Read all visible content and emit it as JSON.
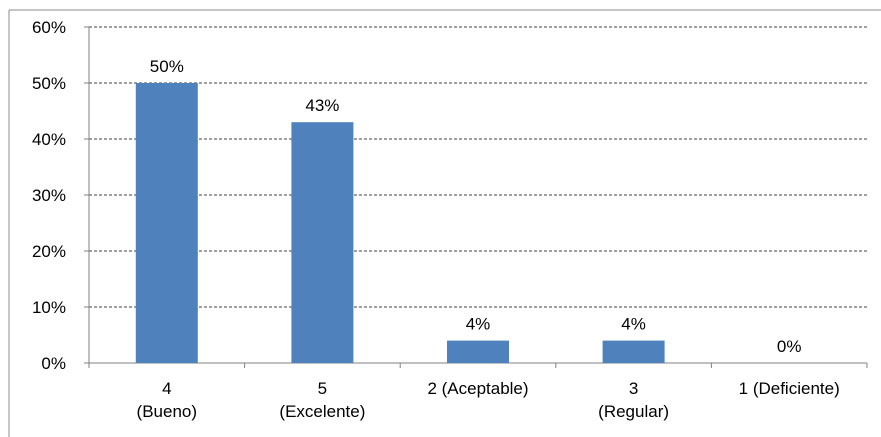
{
  "chart_data": {
    "type": "bar",
    "categories": [
      [
        "4",
        "(Bueno)"
      ],
      [
        "5",
        "(Excelente)"
      ],
      [
        "2 (Aceptable)"
      ],
      [
        "3",
        "(Regular)"
      ],
      [
        "1 (Deficiente)"
      ]
    ],
    "values": [
      50,
      43,
      4,
      4,
      0
    ],
    "data_labels": [
      "50%",
      "43%",
      "4%",
      "4%",
      "0%"
    ],
    "y_ticks": [
      "0%",
      "10%",
      "20%",
      "30%",
      "40%",
      "50%",
      "60%"
    ],
    "ylim": [
      0,
      60
    ],
    "grid": "horizontal dashed",
    "bar_color": "#4F81BD",
    "title": "",
    "xlabel": "",
    "ylabel": ""
  }
}
